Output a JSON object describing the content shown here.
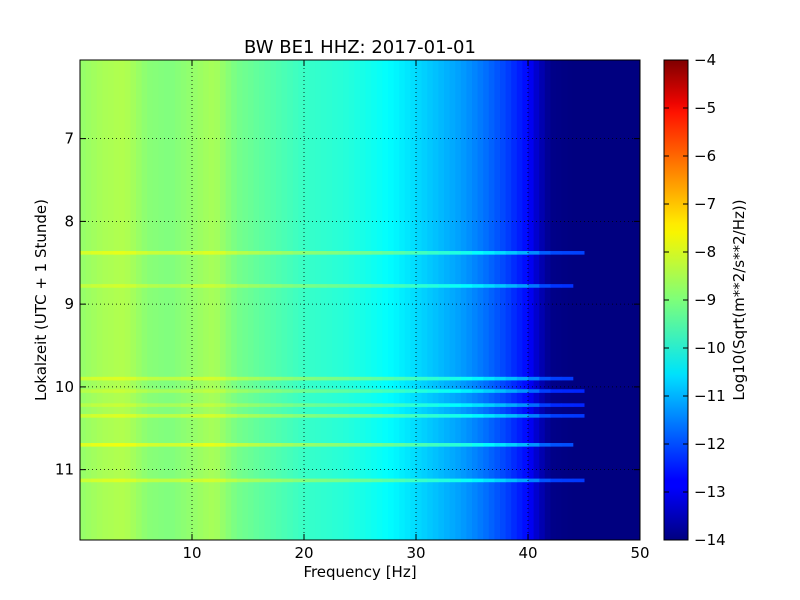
{
  "chart_data": {
    "type": "heatmap",
    "title": "BW BE1 HHZ: 2017-01-01",
    "xlabel": "Frequency [Hz]",
    "ylabel": "Lokalzeit (UTC + 1 Stunde)",
    "xlim": [
      0,
      50
    ],
    "ylim": [
      6.05,
      11.85
    ],
    "y_inverted": true,
    "x_ticks": [
      10,
      20,
      30,
      40,
      50
    ],
    "y_ticks": [
      7,
      8,
      9,
      10,
      11
    ],
    "grid": true,
    "colormap": "jet",
    "colorbar": {
      "label": "Log10(Sqrt(m**2/s**2/Hz))",
      "range": [
        -14,
        -4
      ],
      "ticks": [
        -4,
        -5,
        -6,
        -7,
        -8,
        -9,
        -10,
        -11,
        -12,
        -13,
        -14
      ]
    },
    "frequency_profile": {
      "frequencies": [
        0,
        2,
        4,
        6,
        8,
        10,
        12,
        14,
        16,
        18,
        20,
        22,
        24,
        26,
        28,
        30,
        32,
        34,
        36,
        38,
        40,
        41,
        42,
        44,
        46,
        48,
        50
      ],
      "values": [
        -8.8,
        -8.6,
        -8.5,
        -8.9,
        -9.0,
        -8.8,
        -8.6,
        -9.1,
        -9.3,
        -9.5,
        -9.7,
        -9.8,
        -9.9,
        -10.1,
        -10.3,
        -10.6,
        -10.9,
        -11.2,
        -11.6,
        -12.1,
        -12.7,
        -13.4,
        -13.9,
        -14.0,
        -14.0,
        -14.0,
        -14.0
      ]
    },
    "horizontal_bands": [
      {
        "time": 8.38,
        "value": -8.2,
        "max_freq": 45
      },
      {
        "time": 8.78,
        "value": -8.4,
        "max_freq": 44
      },
      {
        "time": 9.9,
        "value": -8.3,
        "max_freq": 44
      },
      {
        "time": 10.05,
        "value": -8.5,
        "max_freq": 45
      },
      {
        "time": 10.22,
        "value": -8.5,
        "max_freq": 45
      },
      {
        "time": 10.35,
        "value": -8.3,
        "max_freq": 45
      },
      {
        "time": 10.7,
        "value": -8.1,
        "max_freq": 44
      },
      {
        "time": 11.13,
        "value": -8.3,
        "max_freq": 45
      }
    ]
  }
}
